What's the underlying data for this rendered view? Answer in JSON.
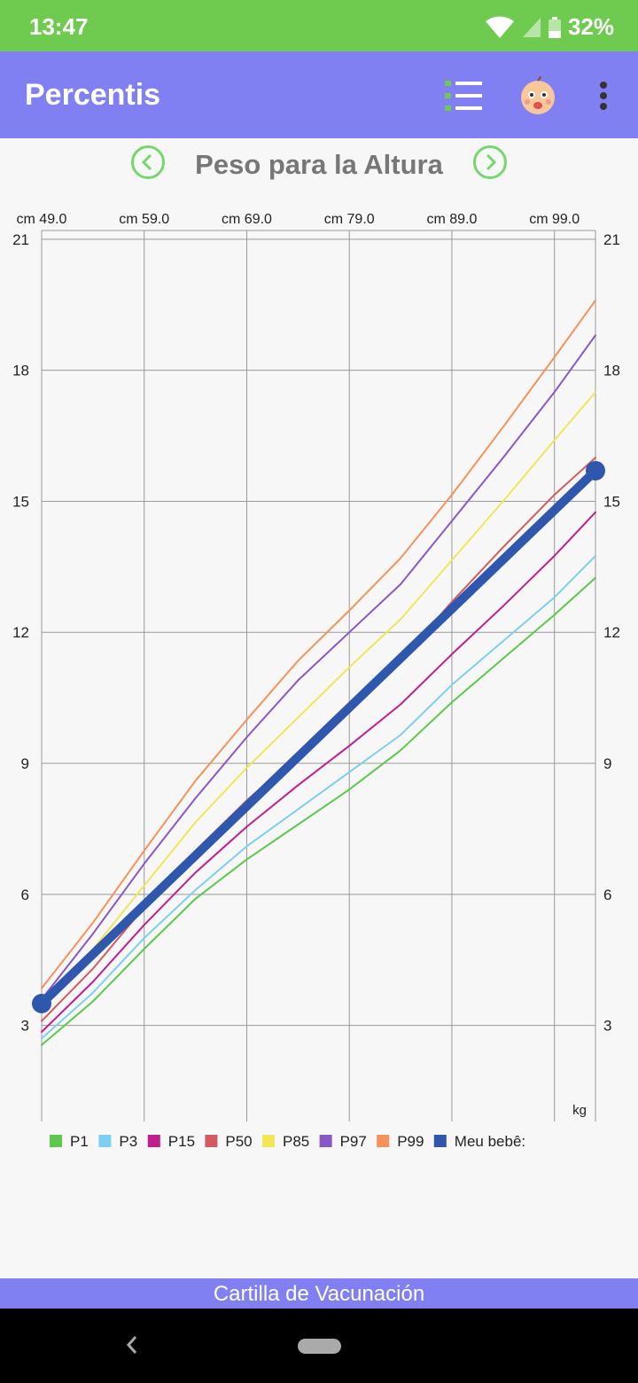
{
  "status_bar": {
    "time": "13:47",
    "battery": "32%"
  },
  "app_bar": {
    "title": "Percentis",
    "icons": [
      "list-icon",
      "baby-face-icon",
      "more-vert-icon"
    ]
  },
  "chart_header": {
    "title": "Peso para la Altura",
    "prev_icon": "chevron-left-icon",
    "next_icon": "chevron-right-icon"
  },
  "chart_data": {
    "type": "line",
    "title": "Peso para la Altura",
    "x_ticks": [
      "cm 49.0",
      "cm 59.0",
      "cm 69.0",
      "cm 79.0",
      "cm 89.0",
      "cm 99.0"
    ],
    "x_tick_values": [
      49,
      59,
      69,
      79,
      89,
      99
    ],
    "xlim": [
      49,
      103
    ],
    "y_ticks": [
      "3",
      "6",
      "9",
      "12",
      "15",
      "18",
      "21"
    ],
    "y_tick_values": [
      3,
      6,
      9,
      12,
      15,
      18,
      21
    ],
    "ylim": [
      0.8,
      21.2
    ],
    "ylabel": "kg",
    "grid": true,
    "legend_position": "bottom-left",
    "series": [
      {
        "name": "P1",
        "color": "#5cc84c",
        "width": 2,
        "x": [
          49,
          54,
          59,
          64,
          69,
          74,
          79,
          84,
          89,
          94,
          99,
          103
        ],
        "y": [
          2.55,
          3.55,
          4.75,
          5.9,
          6.8,
          7.6,
          8.4,
          9.3,
          10.4,
          11.4,
          12.4,
          13.25
        ]
      },
      {
        "name": "P3",
        "color": "#7ecfef",
        "width": 2,
        "x": [
          49,
          54,
          59,
          64,
          69,
          74,
          79,
          84,
          89,
          94,
          99,
          103
        ],
        "y": [
          2.7,
          3.75,
          5.0,
          6.1,
          7.1,
          7.95,
          8.8,
          9.65,
          10.8,
          11.8,
          12.8,
          13.75
        ]
      },
      {
        "name": "P15",
        "color": "#c0208e",
        "width": 2,
        "x": [
          49,
          54,
          59,
          64,
          69,
          74,
          79,
          84,
          89,
          94,
          99,
          103
        ],
        "y": [
          2.85,
          4.0,
          5.3,
          6.5,
          7.55,
          8.5,
          9.4,
          10.35,
          11.5,
          12.6,
          13.75,
          14.75
        ]
      },
      {
        "name": "P50",
        "color": "#d45a62",
        "width": 2,
        "x": [
          49,
          54,
          59,
          64,
          69,
          74,
          79,
          84,
          89,
          94,
          99,
          103
        ],
        "y": [
          3.1,
          4.3,
          5.7,
          7.0,
          8.15,
          9.2,
          10.2,
          11.35,
          12.7,
          13.95,
          15.15,
          16.0
        ]
      },
      {
        "name": "P85",
        "color": "#f1e658",
        "width": 2,
        "x": [
          49,
          54,
          59,
          64,
          69,
          74,
          79,
          84,
          89,
          94,
          99,
          103
        ],
        "y": [
          3.4,
          4.75,
          6.2,
          7.65,
          8.9,
          10.05,
          11.2,
          12.3,
          13.65,
          15.0,
          16.4,
          17.5
        ]
      },
      {
        "name": "P97",
        "color": "#8a57c6",
        "width": 2,
        "x": [
          49,
          54,
          59,
          64,
          69,
          74,
          79,
          84,
          89,
          94,
          99,
          103
        ],
        "y": [
          3.6,
          5.1,
          6.7,
          8.2,
          9.6,
          10.9,
          12.0,
          13.1,
          14.55,
          16.0,
          17.5,
          18.8
        ]
      },
      {
        "name": "P99",
        "color": "#f5925a",
        "width": 2,
        "x": [
          49,
          54,
          59,
          64,
          69,
          74,
          79,
          84,
          89,
          94,
          99,
          103
        ],
        "y": [
          3.85,
          5.35,
          7.0,
          8.6,
          10.0,
          11.35,
          12.5,
          13.7,
          15.15,
          16.7,
          18.3,
          19.6
        ]
      },
      {
        "name": "Meu bebê:",
        "color": "#2e57ad",
        "width": 10,
        "markers": true,
        "x": [
          49,
          103
        ],
        "y": [
          3.5,
          15.7
        ]
      }
    ]
  },
  "banner": {
    "text": "Cartilla de Vacunación"
  }
}
